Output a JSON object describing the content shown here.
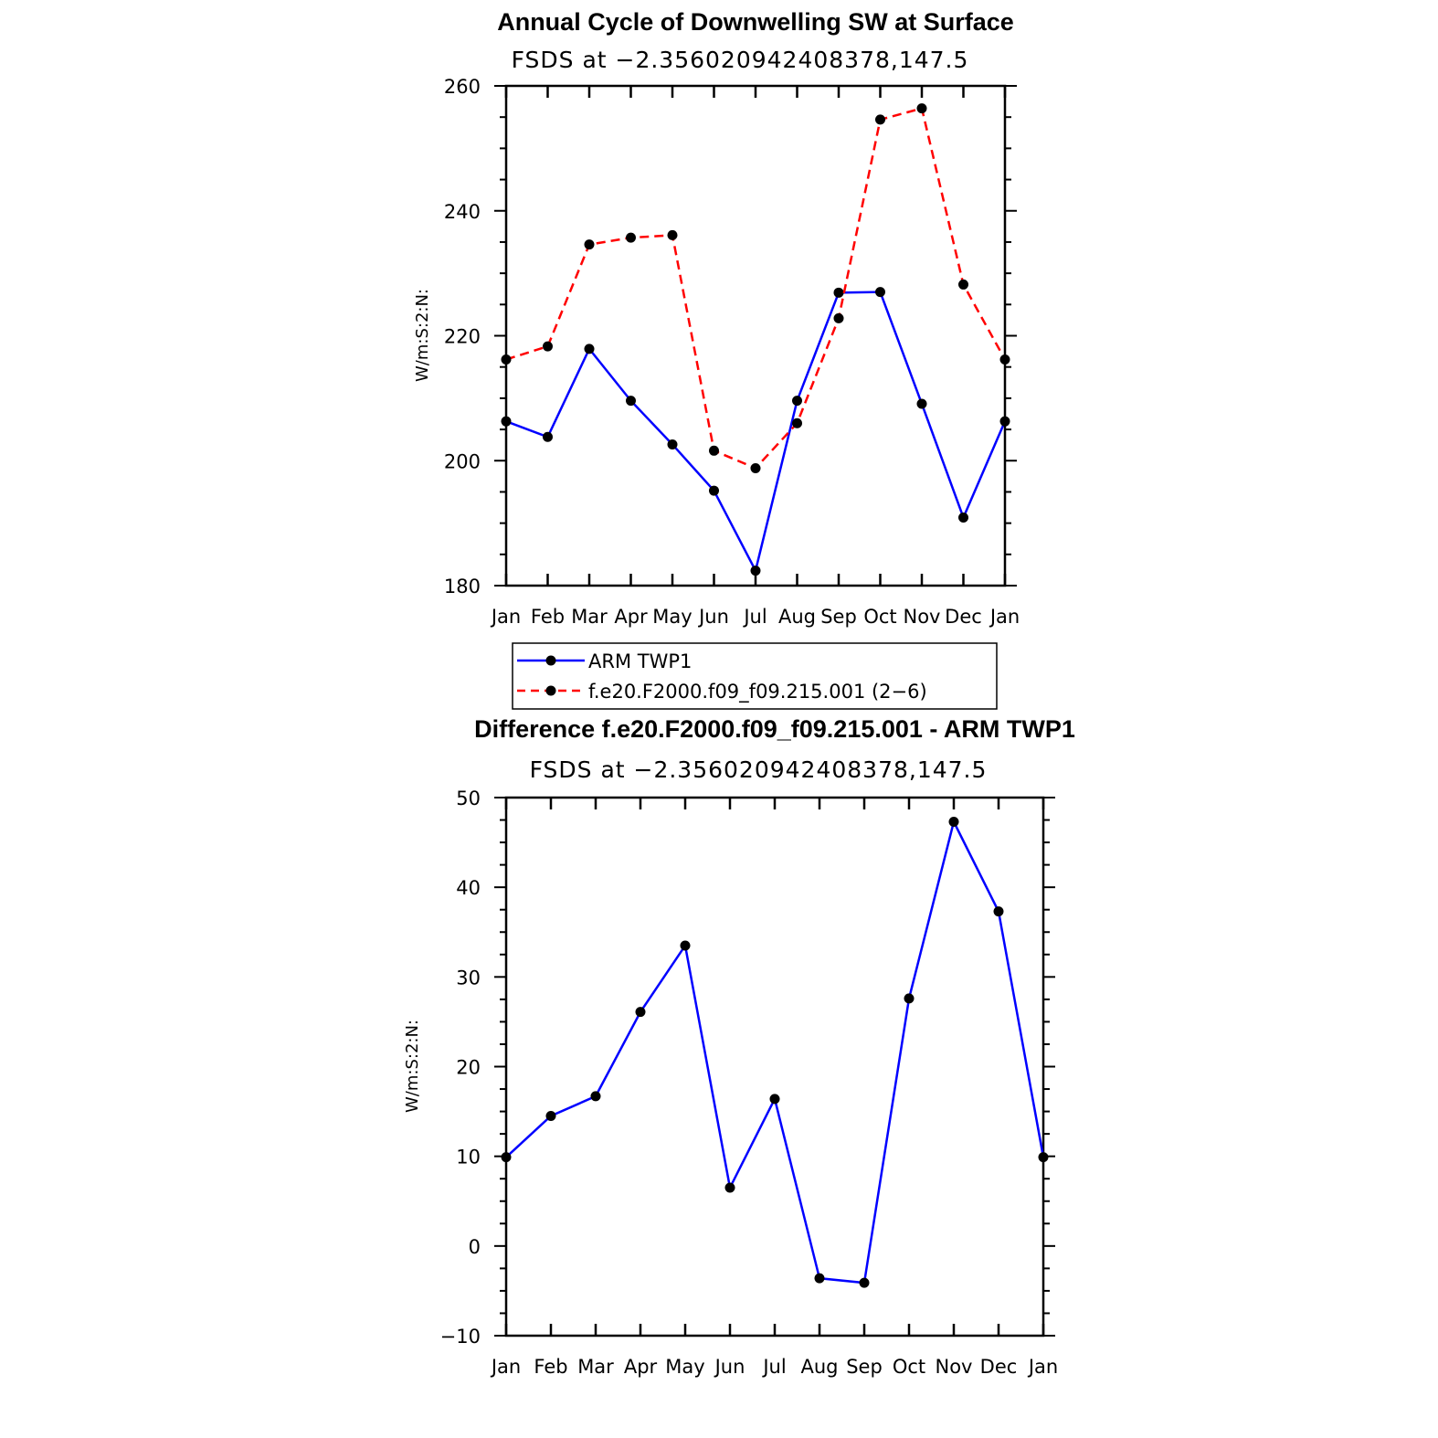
{
  "chart_data": [
    {
      "type": "line",
      "title": "Annual Cycle of Downwelling SW at Surface",
      "subtitle": "FSDS at −2.356020942408378,147.5",
      "xlabel": "",
      "ylabel": "W/m:S:2:N:",
      "categories": [
        "Jan",
        "Feb",
        "Mar",
        "Apr",
        "May",
        "Jun",
        "Jul",
        "Aug",
        "Sep",
        "Oct",
        "Nov",
        "Dec",
        "Jan"
      ],
      "ylim": [
        180,
        260
      ],
      "yticks": [
        180,
        200,
        220,
        240,
        260
      ],
      "grid": false,
      "legend": "below",
      "series": [
        {
          "name": "ARM TWP1",
          "color": "#0000ff",
          "dash": "solid",
          "values": [
            206.3,
            203.8,
            217.9,
            209.6,
            202.6,
            195.2,
            182.4,
            209.6,
            226.9,
            227.0,
            209.1,
            190.9,
            206.3
          ]
        },
        {
          "name": "f.e20.F2000.f09_f09.215.001 (2−6)",
          "color": "#ff0000",
          "dash": "dashed",
          "values": [
            216.2,
            218.3,
            234.6,
            235.7,
            236.1,
            201.6,
            198.8,
            206.0,
            222.8,
            254.6,
            256.4,
            228.2,
            216.2
          ]
        }
      ]
    },
    {
      "type": "line",
      "title": "Difference f.e20.F2000.f09_f09.215.001 - ARM TWP1",
      "subtitle": "FSDS at −2.356020942408378,147.5",
      "xlabel": "",
      "ylabel": "W/m:S:2:N:",
      "categories": [
        "Jan",
        "Feb",
        "Mar",
        "Apr",
        "May",
        "Jun",
        "Jul",
        "Aug",
        "Sep",
        "Oct",
        "Nov",
        "Dec",
        "Jan"
      ],
      "ylim": [
        -10,
        50
      ],
      "yticks": [
        -10,
        0,
        10,
        20,
        30,
        40,
        50
      ],
      "ytick_labels": [
        "−10",
        "0",
        "10",
        "20",
        "30",
        "40",
        "50"
      ],
      "grid": false,
      "series": [
        {
          "color": "#0000ff",
          "dash": "solid",
          "values": [
            9.9,
            14.5,
            16.7,
            26.1,
            33.5,
            6.5,
            16.4,
            -3.6,
            -4.1,
            27.6,
            47.3,
            37.3,
            9.9
          ]
        }
      ]
    }
  ]
}
